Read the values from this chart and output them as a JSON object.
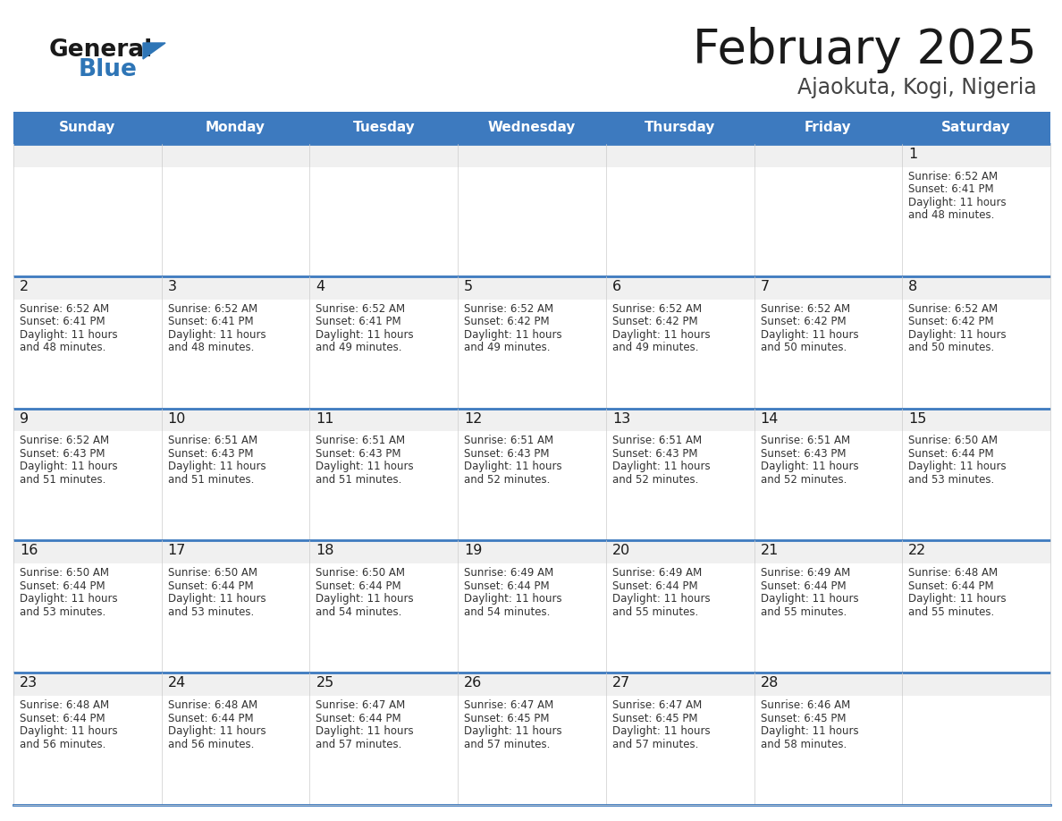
{
  "title": "February 2025",
  "subtitle": "Ajaokuta, Kogi, Nigeria",
  "header_bg": "#3D7ABF",
  "header_text_color": "#FFFFFF",
  "cell_bg_light": "#F0F0F0",
  "cell_bg_white": "#FFFFFF",
  "day_headers": [
    "Sunday",
    "Monday",
    "Tuesday",
    "Wednesday",
    "Thursday",
    "Friday",
    "Saturday"
  ],
  "title_color": "#1A1A1A",
  "subtitle_color": "#444444",
  "day_number_color": "#1A1A1A",
  "info_color": "#333333",
  "line_color": "#3D7ABF",
  "grid_line_color": "#CCCCCC",
  "logo_general_color": "#1A1A1A",
  "logo_blue_color": "#2E75B6",
  "calendar_data": {
    "1": {
      "sunrise": "6:52 AM",
      "sunset": "6:41 PM",
      "daylight": "11 hours and 48 minutes"
    },
    "2": {
      "sunrise": "6:52 AM",
      "sunset": "6:41 PM",
      "daylight": "11 hours and 48 minutes"
    },
    "3": {
      "sunrise": "6:52 AM",
      "sunset": "6:41 PM",
      "daylight": "11 hours and 48 minutes"
    },
    "4": {
      "sunrise": "6:52 AM",
      "sunset": "6:41 PM",
      "daylight": "11 hours and 49 minutes"
    },
    "5": {
      "sunrise": "6:52 AM",
      "sunset": "6:42 PM",
      "daylight": "11 hours and 49 minutes"
    },
    "6": {
      "sunrise": "6:52 AM",
      "sunset": "6:42 PM",
      "daylight": "11 hours and 49 minutes"
    },
    "7": {
      "sunrise": "6:52 AM",
      "sunset": "6:42 PM",
      "daylight": "11 hours and 50 minutes"
    },
    "8": {
      "sunrise": "6:52 AM",
      "sunset": "6:42 PM",
      "daylight": "11 hours and 50 minutes"
    },
    "9": {
      "sunrise": "6:52 AM",
      "sunset": "6:43 PM",
      "daylight": "11 hours and 51 minutes"
    },
    "10": {
      "sunrise": "6:51 AM",
      "sunset": "6:43 PM",
      "daylight": "11 hours and 51 minutes"
    },
    "11": {
      "sunrise": "6:51 AM",
      "sunset": "6:43 PM",
      "daylight": "11 hours and 51 minutes"
    },
    "12": {
      "sunrise": "6:51 AM",
      "sunset": "6:43 PM",
      "daylight": "11 hours and 52 minutes"
    },
    "13": {
      "sunrise": "6:51 AM",
      "sunset": "6:43 PM",
      "daylight": "11 hours and 52 minutes"
    },
    "14": {
      "sunrise": "6:51 AM",
      "sunset": "6:43 PM",
      "daylight": "11 hours and 52 minutes"
    },
    "15": {
      "sunrise": "6:50 AM",
      "sunset": "6:44 PM",
      "daylight": "11 hours and 53 minutes"
    },
    "16": {
      "sunrise": "6:50 AM",
      "sunset": "6:44 PM",
      "daylight": "11 hours and 53 minutes"
    },
    "17": {
      "sunrise": "6:50 AM",
      "sunset": "6:44 PM",
      "daylight": "11 hours and 53 minutes"
    },
    "18": {
      "sunrise": "6:50 AM",
      "sunset": "6:44 PM",
      "daylight": "11 hours and 54 minutes"
    },
    "19": {
      "sunrise": "6:49 AM",
      "sunset": "6:44 PM",
      "daylight": "11 hours and 54 minutes"
    },
    "20": {
      "sunrise": "6:49 AM",
      "sunset": "6:44 PM",
      "daylight": "11 hours and 55 minutes"
    },
    "21": {
      "sunrise": "6:49 AM",
      "sunset": "6:44 PM",
      "daylight": "11 hours and 55 minutes"
    },
    "22": {
      "sunrise": "6:48 AM",
      "sunset": "6:44 PM",
      "daylight": "11 hours and 55 minutes"
    },
    "23": {
      "sunrise": "6:48 AM",
      "sunset": "6:44 PM",
      "daylight": "11 hours and 56 minutes"
    },
    "24": {
      "sunrise": "6:48 AM",
      "sunset": "6:44 PM",
      "daylight": "11 hours and 56 minutes"
    },
    "25": {
      "sunrise": "6:47 AM",
      "sunset": "6:44 PM",
      "daylight": "11 hours and 57 minutes"
    },
    "26": {
      "sunrise": "6:47 AM",
      "sunset": "6:45 PM",
      "daylight": "11 hours and 57 minutes"
    },
    "27": {
      "sunrise": "6:47 AM",
      "sunset": "6:45 PM",
      "daylight": "11 hours and 57 minutes"
    },
    "28": {
      "sunrise": "6:46 AM",
      "sunset": "6:45 PM",
      "daylight": "11 hours and 58 minutes"
    }
  }
}
